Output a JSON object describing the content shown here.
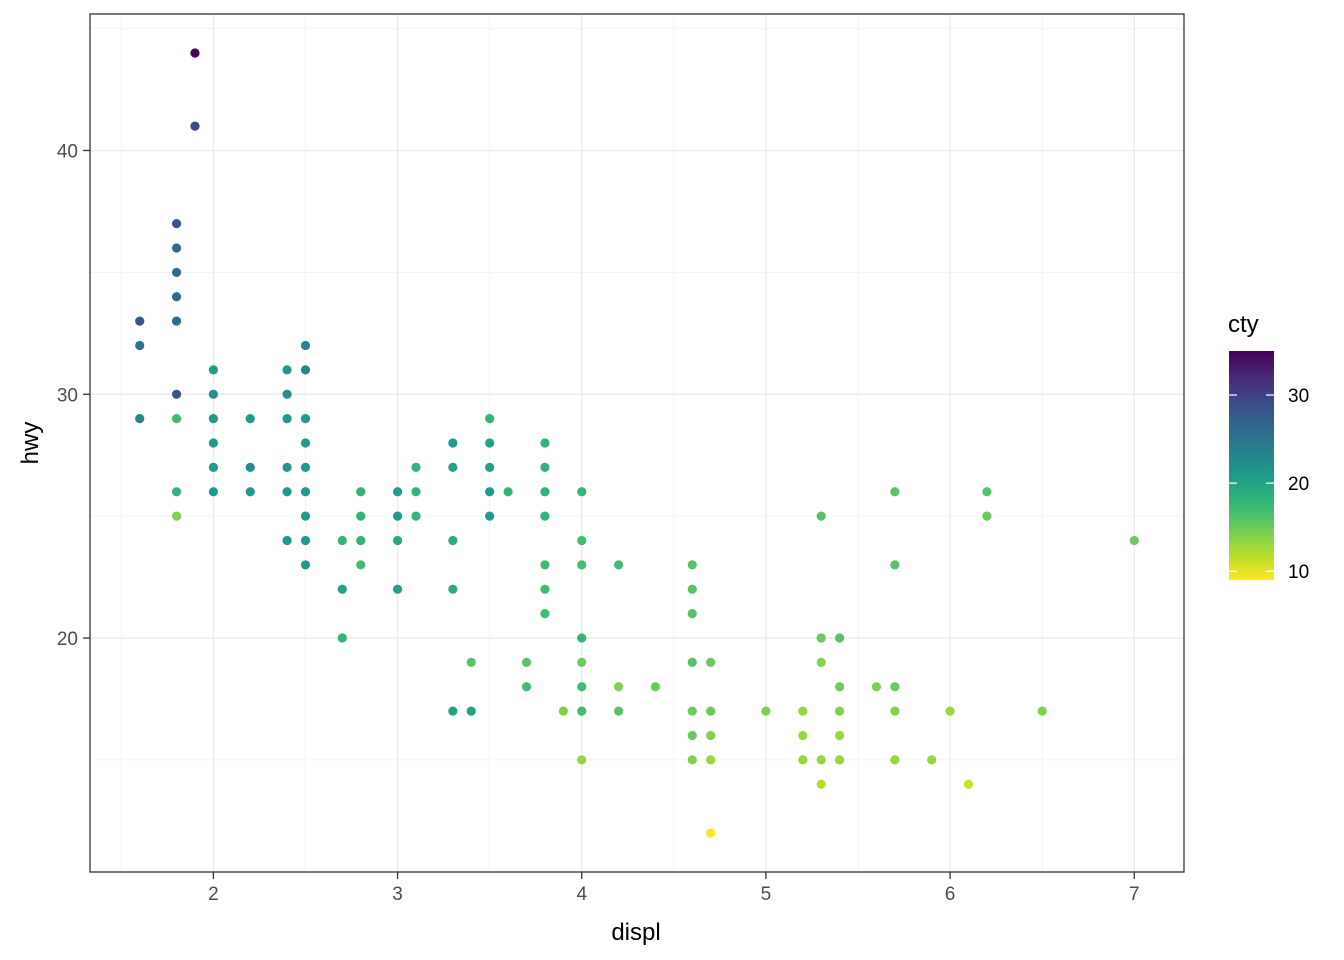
{
  "chart_data": {
    "type": "scatter",
    "xlabel": "displ",
    "ylabel": "hwy",
    "xlim": [
      1.33,
      7.27
    ],
    "ylim": [
      10.4,
      45.6
    ],
    "x_ticks": [
      2,
      3,
      4,
      5,
      6,
      7
    ],
    "y_ticks": [
      20,
      30,
      40
    ],
    "grid": true,
    "legend": {
      "title": "cty",
      "position": "right",
      "type": "colorbar",
      "range": [
        9,
        35
      ],
      "ticks": [
        10,
        20,
        30
      ],
      "colors": [
        "#FDE725",
        "#B4DE2C",
        "#6DCD59",
        "#35B779",
        "#1F9E89",
        "#26828E",
        "#31688E",
        "#3E4A89",
        "#482878",
        "#440154"
      ]
    },
    "points": [
      {
        "x": 1.6,
        "y": 33,
        "cty": 28
      },
      {
        "x": 1.6,
        "y": 32,
        "cty": 25
      },
      {
        "x": 1.6,
        "y": 29,
        "cty": 23
      },
      {
        "x": 1.8,
        "y": 37,
        "cty": 28
      },
      {
        "x": 1.8,
        "y": 36,
        "cty": 26
      },
      {
        "x": 1.8,
        "y": 35,
        "cty": 26
      },
      {
        "x": 1.8,
        "y": 34,
        "cty": 26
      },
      {
        "x": 1.8,
        "y": 33,
        "cty": 26
      },
      {
        "x": 1.8,
        "y": 30,
        "cty": 28
      },
      {
        "x": 1.8,
        "y": 29,
        "cty": 17
      },
      {
        "x": 1.8,
        "y": 26,
        "cty": 18
      },
      {
        "x": 1.8,
        "y": 25,
        "cty": 14
      },
      {
        "x": 1.9,
        "y": 44,
        "cty": 35
      },
      {
        "x": 1.9,
        "y": 41,
        "cty": 29
      },
      {
        "x": 2.0,
        "y": 31,
        "cty": 21
      },
      {
        "x": 2.0,
        "y": 30,
        "cty": 22
      },
      {
        "x": 2.0,
        "y": 29,
        "cty": 21
      },
      {
        "x": 2.0,
        "y": 28,
        "cty": 21
      },
      {
        "x": 2.0,
        "y": 27,
        "cty": 21
      },
      {
        "x": 2.0,
        "y": 26,
        "cty": 21
      },
      {
        "x": 2.2,
        "y": 29,
        "cty": 21
      },
      {
        "x": 2.2,
        "y": 27,
        "cty": 22
      },
      {
        "x": 2.2,
        "y": 26,
        "cty": 21
      },
      {
        "x": 2.4,
        "y": 31,
        "cty": 21
      },
      {
        "x": 2.4,
        "y": 30,
        "cty": 22
      },
      {
        "x": 2.4,
        "y": 29,
        "cty": 21
      },
      {
        "x": 2.4,
        "y": 27,
        "cty": 21
      },
      {
        "x": 2.4,
        "y": 26,
        "cty": 21
      },
      {
        "x": 2.4,
        "y": 24,
        "cty": 21
      },
      {
        "x": 2.5,
        "y": 32,
        "cty": 23
      },
      {
        "x": 2.5,
        "y": 31,
        "cty": 23
      },
      {
        "x": 2.5,
        "y": 29,
        "cty": 21
      },
      {
        "x": 2.5,
        "y": 28,
        "cty": 21
      },
      {
        "x": 2.5,
        "y": 27,
        "cty": 21
      },
      {
        "x": 2.5,
        "y": 26,
        "cty": 21
      },
      {
        "x": 2.5,
        "y": 25,
        "cty": 21
      },
      {
        "x": 2.5,
        "y": 24,
        "cty": 21
      },
      {
        "x": 2.5,
        "y": 23,
        "cty": 21
      },
      {
        "x": 2.7,
        "y": 24,
        "cty": 18
      },
      {
        "x": 2.7,
        "y": 22,
        "cty": 20
      },
      {
        "x": 2.7,
        "y": 20,
        "cty": 18
      },
      {
        "x": 2.8,
        "y": 26,
        "cty": 18
      },
      {
        "x": 2.8,
        "y": 25,
        "cty": 18
      },
      {
        "x": 2.8,
        "y": 24,
        "cty": 18
      },
      {
        "x": 2.8,
        "y": 23,
        "cty": 17
      },
      {
        "x": 3.0,
        "y": 26,
        "cty": 21
      },
      {
        "x": 3.0,
        "y": 25,
        "cty": 21
      },
      {
        "x": 3.0,
        "y": 24,
        "cty": 19
      },
      {
        "x": 3.0,
        "y": 22,
        "cty": 20
      },
      {
        "x": 3.1,
        "y": 27,
        "cty": 18
      },
      {
        "x": 3.1,
        "y": 26,
        "cty": 18
      },
      {
        "x": 3.1,
        "y": 25,
        "cty": 18
      },
      {
        "x": 3.3,
        "y": 28,
        "cty": 21
      },
      {
        "x": 3.3,
        "y": 27,
        "cty": 20
      },
      {
        "x": 3.3,
        "y": 24,
        "cty": 19
      },
      {
        "x": 3.3,
        "y": 22,
        "cty": 19
      },
      {
        "x": 3.3,
        "y": 17,
        "cty": 20
      },
      {
        "x": 3.4,
        "y": 19,
        "cty": 16
      },
      {
        "x": 3.4,
        "y": 17,
        "cty": 20
      },
      {
        "x": 3.5,
        "y": 29,
        "cty": 18
      },
      {
        "x": 3.5,
        "y": 28,
        "cty": 20
      },
      {
        "x": 3.5,
        "y": 27,
        "cty": 20
      },
      {
        "x": 3.5,
        "y": 26,
        "cty": 21
      },
      {
        "x": 3.5,
        "y": 25,
        "cty": 21
      },
      {
        "x": 3.6,
        "y": 26,
        "cty": 18
      },
      {
        "x": 3.7,
        "y": 19,
        "cty": 16
      },
      {
        "x": 3.7,
        "y": 18,
        "cty": 17
      },
      {
        "x": 3.8,
        "y": 28,
        "cty": 18
      },
      {
        "x": 3.8,
        "y": 27,
        "cty": 18
      },
      {
        "x": 3.8,
        "y": 26,
        "cty": 18
      },
      {
        "x": 3.8,
        "y": 25,
        "cty": 18
      },
      {
        "x": 3.8,
        "y": 23,
        "cty": 17
      },
      {
        "x": 3.8,
        "y": 22,
        "cty": 17
      },
      {
        "x": 3.8,
        "y": 21,
        "cty": 17
      },
      {
        "x": 3.9,
        "y": 17,
        "cty": 14
      },
      {
        "x": 4.0,
        "y": 26,
        "cty": 18
      },
      {
        "x": 4.0,
        "y": 24,
        "cty": 17
      },
      {
        "x": 4.0,
        "y": 23,
        "cty": 17
      },
      {
        "x": 4.0,
        "y": 20,
        "cty": 18
      },
      {
        "x": 4.0,
        "y": 19,
        "cty": 15
      },
      {
        "x": 4.0,
        "y": 18,
        "cty": 17
      },
      {
        "x": 4.0,
        "y": 17,
        "cty": 17
      },
      {
        "x": 4.0,
        "y": 15,
        "cty": 13
      },
      {
        "x": 4.2,
        "y": 23,
        "cty": 17
      },
      {
        "x": 4.2,
        "y": 18,
        "cty": 14
      },
      {
        "x": 4.2,
        "y": 17,
        "cty": 16
      },
      {
        "x": 4.4,
        "y": 18,
        "cty": 15
      },
      {
        "x": 4.6,
        "y": 23,
        "cty": 16
      },
      {
        "x": 4.6,
        "y": 22,
        "cty": 16
      },
      {
        "x": 4.6,
        "y": 21,
        "cty": 16
      },
      {
        "x": 4.6,
        "y": 19,
        "cty": 16
      },
      {
        "x": 4.6,
        "y": 17,
        "cty": 15
      },
      {
        "x": 4.6,
        "y": 16,
        "cty": 15
      },
      {
        "x": 4.6,
        "y": 15,
        "cty": 14
      },
      {
        "x": 4.7,
        "y": 19,
        "cty": 15
      },
      {
        "x": 4.7,
        "y": 17,
        "cty": 15
      },
      {
        "x": 4.7,
        "y": 16,
        "cty": 14
      },
      {
        "x": 4.7,
        "y": 15,
        "cty": 13
      },
      {
        "x": 4.7,
        "y": 12,
        "cty": 9
      },
      {
        "x": 5.0,
        "y": 17,
        "cty": 14
      },
      {
        "x": 5.2,
        "y": 17,
        "cty": 13
      },
      {
        "x": 5.2,
        "y": 16,
        "cty": 13
      },
      {
        "x": 5.2,
        "y": 15,
        "cty": 13
      },
      {
        "x": 5.3,
        "y": 25,
        "cty": 16
      },
      {
        "x": 5.3,
        "y": 20,
        "cty": 15
      },
      {
        "x": 5.3,
        "y": 19,
        "cty": 14
      },
      {
        "x": 5.3,
        "y": 15,
        "cty": 13
      },
      {
        "x": 5.3,
        "y": 14,
        "cty": 12
      },
      {
        "x": 5.4,
        "y": 20,
        "cty": 16
      },
      {
        "x": 5.4,
        "y": 18,
        "cty": 15
      },
      {
        "x": 5.4,
        "y": 17,
        "cty": 14
      },
      {
        "x": 5.4,
        "y": 16,
        "cty": 13
      },
      {
        "x": 5.4,
        "y": 15,
        "cty": 13
      },
      {
        "x": 5.6,
        "y": 18,
        "cty": 14
      },
      {
        "x": 5.7,
        "y": 26,
        "cty": 16
      },
      {
        "x": 5.7,
        "y": 23,
        "cty": 16
      },
      {
        "x": 5.7,
        "y": 18,
        "cty": 15
      },
      {
        "x": 5.7,
        "y": 17,
        "cty": 14
      },
      {
        "x": 5.7,
        "y": 15,
        "cty": 13
      },
      {
        "x": 5.9,
        "y": 15,
        "cty": 13
      },
      {
        "x": 6.0,
        "y": 17,
        "cty": 13
      },
      {
        "x": 6.1,
        "y": 14,
        "cty": 11
      },
      {
        "x": 6.2,
        "y": 26,
        "cty": 16
      },
      {
        "x": 6.2,
        "y": 25,
        "cty": 15
      },
      {
        "x": 6.5,
        "y": 17,
        "cty": 14
      },
      {
        "x": 7.0,
        "y": 24,
        "cty": 15
      }
    ]
  }
}
